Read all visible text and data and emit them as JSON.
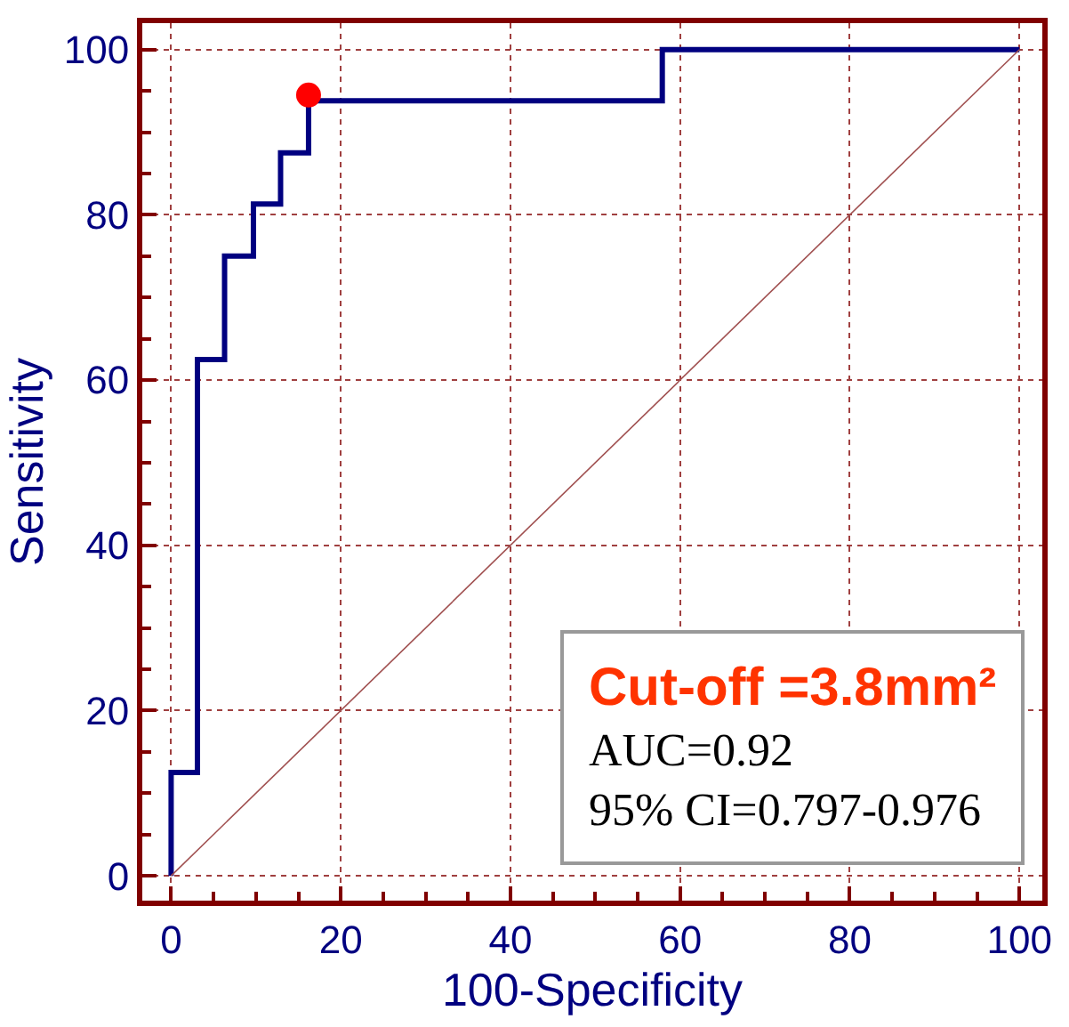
{
  "chart_data": {
    "type": "step",
    "xlabel": "100-Specificity",
    "ylabel": "Sensitivity",
    "series": [
      {
        "color": "#000080",
        "x": [
          0,
          0,
          3.1,
          3.1,
          6.3,
          6.3,
          9.7,
          9.7,
          12.9,
          12.9,
          16.2,
          16.2,
          57.9,
          57.9,
          100
        ],
        "values": [
          0,
          12.5,
          12.5,
          62.5,
          62.5,
          75,
          75,
          81.3,
          81.3,
          87.5,
          87.5,
          93.8,
          93.8,
          100,
          100
        ]
      },
      {
        "type": "line",
        "color": "#a05050",
        "x": [
          0,
          100
        ],
        "values": [
          0,
          100
        ]
      },
      {
        "type": "scatter",
        "color": "#ff0000",
        "x": [
          16.2
        ],
        "values": [
          94.5
        ],
        "marker": "circle"
      }
    ],
    "xlim": [
      -3.4,
      102.7
    ],
    "ylim": [
      -3,
      103.2
    ],
    "xticks": [
      0,
      20,
      40,
      60,
      80,
      100
    ],
    "yticks": [
      0,
      20,
      40,
      60,
      80,
      100
    ],
    "grid": true,
    "annotations": [
      "Cut-off =3.8mm²",
      "AUC=0.92",
      "95% CI=0.797-0.976"
    ]
  }
}
